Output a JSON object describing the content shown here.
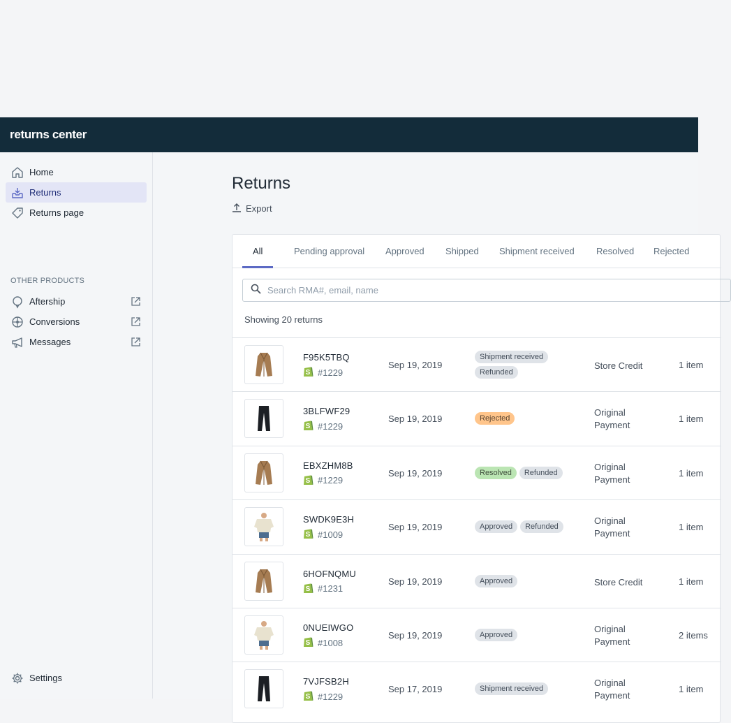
{
  "app": {
    "brand": "returns center"
  },
  "sidebar": {
    "items": [
      {
        "label": "Home",
        "icon": "home-icon",
        "active": false
      },
      {
        "label": "Returns",
        "icon": "inbox-download-icon",
        "active": true
      },
      {
        "label": "Returns page",
        "icon": "tag-icon",
        "active": false
      }
    ],
    "section_title": "OTHER PRODUCTS",
    "products": [
      {
        "label": "Aftership",
        "icon": "pin-icon"
      },
      {
        "label": "Conversions",
        "icon": "globe-icon"
      },
      {
        "label": "Messages",
        "icon": "megaphone-icon"
      }
    ],
    "settings_label": "Settings"
  },
  "main": {
    "title": "Returns",
    "export_label": "Export",
    "tabs": [
      "All",
      "Pending approval",
      "Approved",
      "Shipped",
      "Shipment received",
      "Resolved",
      "Rejected"
    ],
    "search_placeholder": "Search RMA#, email, name",
    "showing_text": "Showing 20 returns",
    "rows": [
      {
        "rma": "F95K5TBQ",
        "order": "#1229",
        "date": "Sep 19, 2019",
        "badges": [
          {
            "text": "Shipment received",
            "kind": "default"
          },
          {
            "text": "Refunded",
            "kind": "default"
          }
        ],
        "method": [
          "Store Credit"
        ],
        "items": "1 item",
        "product": "coat"
      },
      {
        "rma": "3BLFWF29",
        "order": "#1229",
        "date": "Sep 19, 2019",
        "badges": [
          {
            "text": "Rejected",
            "kind": "rejected"
          }
        ],
        "method": [
          "Original",
          "Payment"
        ],
        "items": "1 item",
        "product": "pants"
      },
      {
        "rma": "EBXZHM8B",
        "order": "#1229",
        "date": "Sep 19, 2019",
        "badges": [
          {
            "text": "Resolved",
            "kind": "resolved"
          },
          {
            "text": "Refunded",
            "kind": "default"
          }
        ],
        "method": [
          "Original",
          "Payment"
        ],
        "items": "1 item",
        "product": "coat"
      },
      {
        "rma": "SWDK9E3H",
        "order": "#1009",
        "date": "Sep 19, 2019",
        "badges": [
          {
            "text": "Approved",
            "kind": "default"
          },
          {
            "text": "Refunded",
            "kind": "default"
          }
        ],
        "method": [
          "Original",
          "Payment"
        ],
        "items": "1 item",
        "product": "shirt"
      },
      {
        "rma": "6HOFNQMU",
        "order": "#1231",
        "date": "Sep 19, 2019",
        "badges": [
          {
            "text": "Approved",
            "kind": "default"
          }
        ],
        "method": [
          "Store Credit"
        ],
        "items": "1 item",
        "product": "coat"
      },
      {
        "rma": "0NUEIWGO",
        "order": "#1008",
        "date": "Sep 19, 2019",
        "badges": [
          {
            "text": "Approved",
            "kind": "default"
          }
        ],
        "method": [
          "Original",
          "Payment"
        ],
        "items": "2 items",
        "product": "shirt"
      },
      {
        "rma": "7VJFSB2H",
        "order": "#1229",
        "date": "Sep 17, 2019",
        "badges": [
          {
            "text": "Shipment received",
            "kind": "default"
          }
        ],
        "method": [
          "Original",
          "Payment"
        ],
        "items": "1 item",
        "product": "pants"
      }
    ]
  },
  "colors": {
    "topbar": "#132c3a",
    "accent": "#5c6ac4",
    "shopify_green": "#95bf47"
  }
}
